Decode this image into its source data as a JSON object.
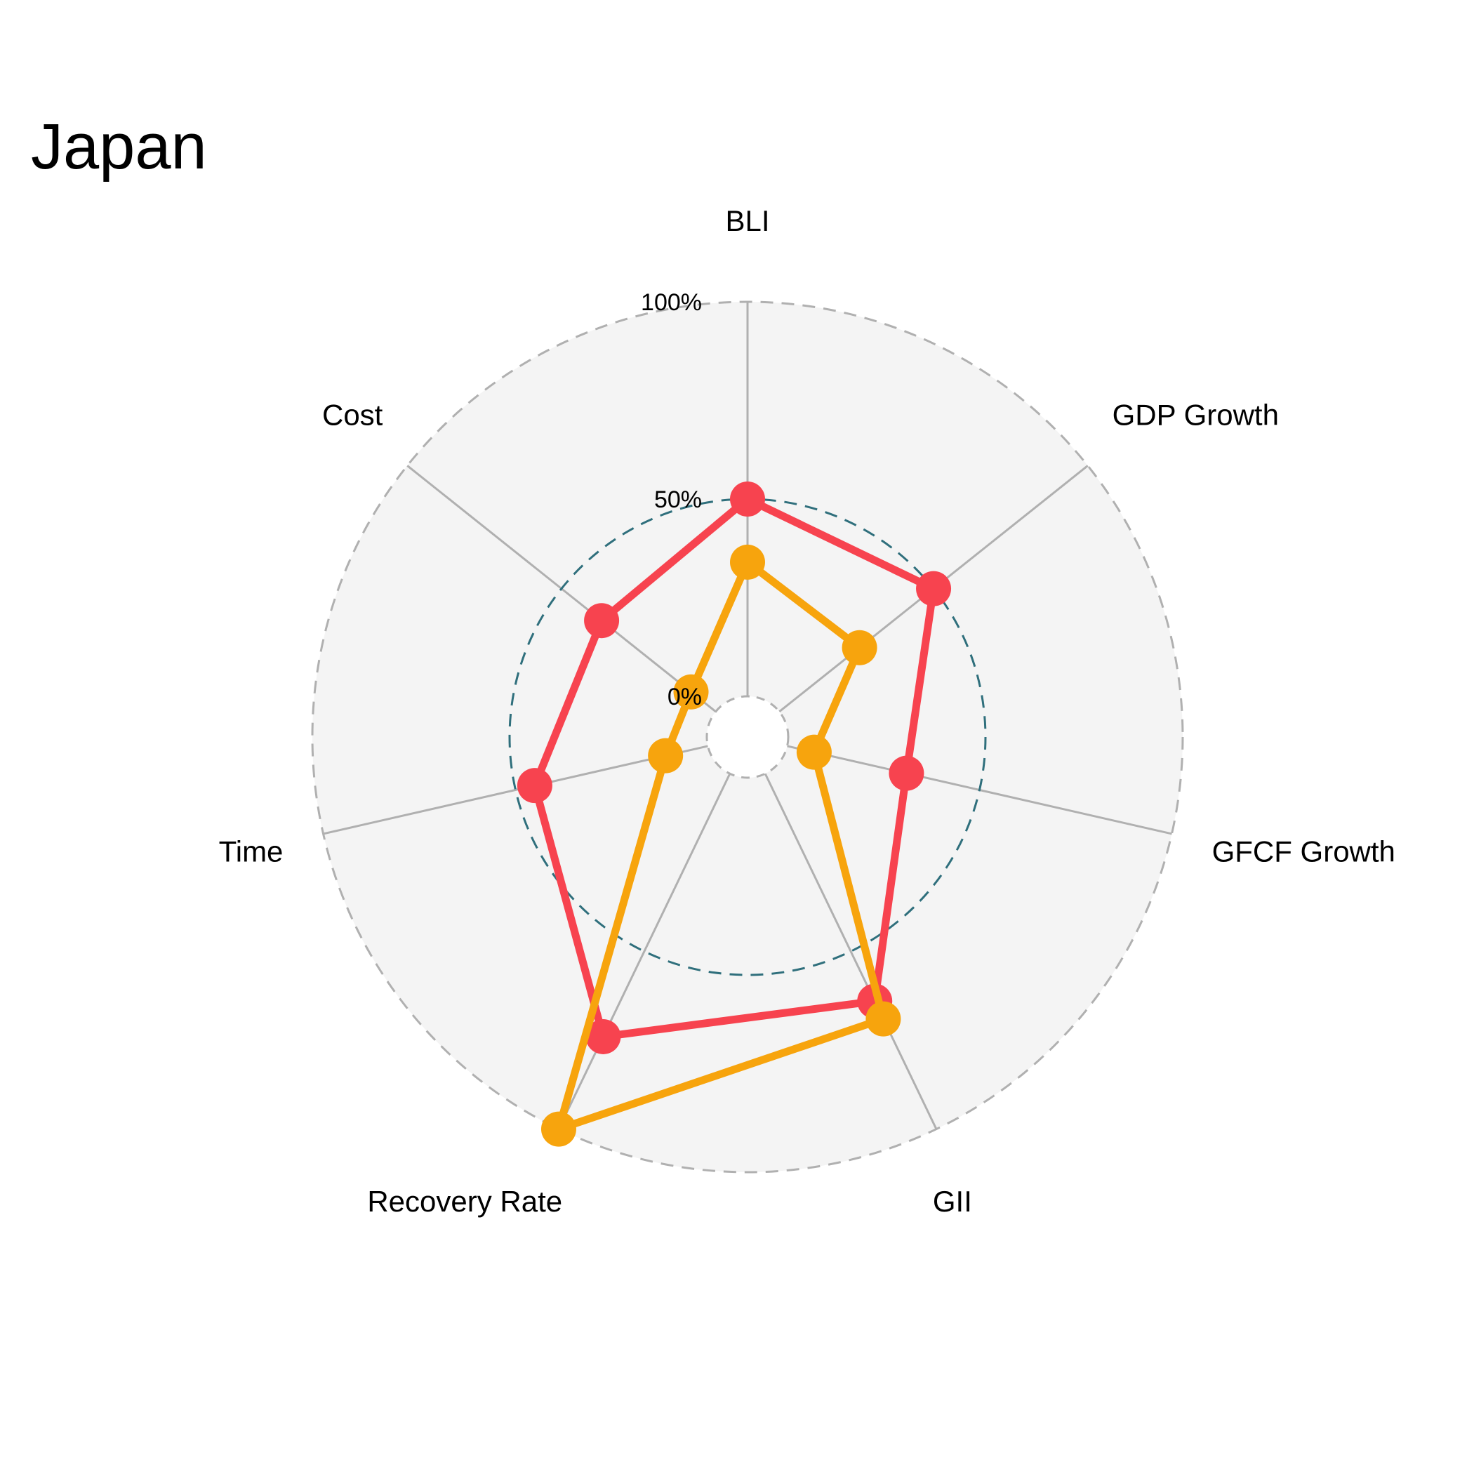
{
  "chart_data": {
    "type": "radar",
    "title": "Japan",
    "axes": [
      "BLI",
      "GDP Growth",
      "GFCF Growth",
      "GII",
      "Recovery Rate",
      "Time",
      "Cost"
    ],
    "rlim": [
      0,
      100
    ],
    "tick_labels": [
      {
        "value": 0,
        "label": "0%"
      },
      {
        "value": 50,
        "label": "50%"
      },
      {
        "value": 100,
        "label": "100%"
      }
    ],
    "series": [
      {
        "color": "#f7434f",
        "values": [
          50,
          50,
          31,
          64,
          74,
          45,
          37
        ]
      },
      {
        "color": "#f7a40d",
        "values": [
          34,
          26,
          7,
          69,
          100,
          11,
          8
        ]
      }
    ],
    "grid": true,
    "colors": {
      "background_disc": "#f4f4f4",
      "spoke": "#b0b0b0",
      "outer_ring": "#b0b0b0",
      "mid_ring": "#2f6f7c"
    }
  }
}
